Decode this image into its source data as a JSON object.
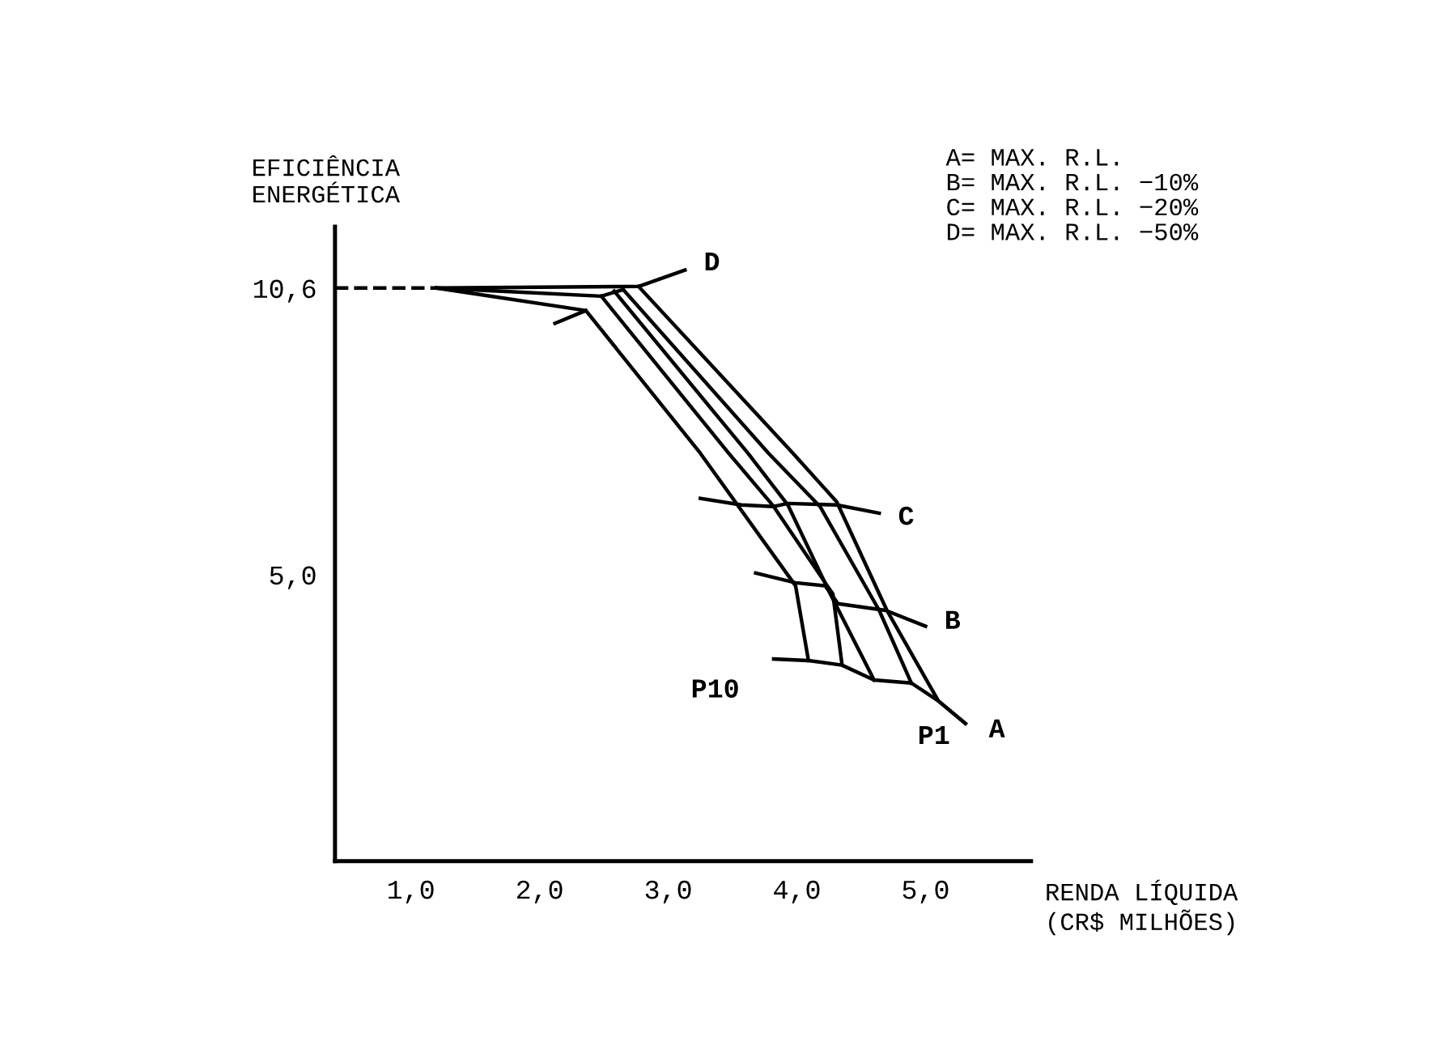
{
  "chart_data": {
    "type": "line",
    "xlabel": "RENDA LÍQUIDA\n(CR$ MILHÕES)",
    "ylabel": "EFICIÊNCIA\nENERGÉTICA",
    "xlim": [
      0.41,
      5.82
    ],
    "ylim": [
      -0.6,
      11.8
    ],
    "xticks": [
      {
        "value": 1,
        "label": "1,0"
      },
      {
        "value": 2,
        "label": "2,0"
      },
      {
        "value": 3,
        "label": "3,0"
      },
      {
        "value": 4,
        "label": "4,0"
      },
      {
        "value": 5,
        "label": "5,0"
      }
    ],
    "yticks": [
      {
        "value": 5.0,
        "label": "5,0"
      },
      {
        "value": 10.6,
        "label": "10,6"
      }
    ],
    "series": [
      {
        "color": "#000000",
        "line_style": "dashed",
        "x": [
          0.41,
          1.2
        ],
        "values": [
          10.6,
          10.6
        ]
      },
      {
        "color": "#000000",
        "x": [
          2.36,
          3.25,
          3.99,
          4.09
        ],
        "values": [
          10.16,
          7.37,
          4.78,
          3.32
        ]
      },
      {
        "color": "#000000",
        "x": [
          2.48,
          3.47,
          3.82,
          4.22,
          4.28,
          4.35
        ],
        "values": [
          10.44,
          7.37,
          6.33,
          4.84,
          4.62,
          3.26
        ]
      },
      {
        "color": "#000000",
        "x": [
          2.58,
          3.62,
          3.93,
          4.26,
          4.6
        ],
        "values": [
          10.54,
          7.37,
          6.36,
          4.62,
          2.94
        ]
      },
      {
        "color": "#000000",
        "x": [
          2.65,
          3.78,
          4.18,
          4.64,
          4.89
        ],
        "values": [
          10.57,
          7.37,
          6.33,
          4.3,
          2.88
        ]
      },
      {
        "color": "#000000",
        "x": [
          2.77,
          3.97,
          4.31,
          4.7,
          5.1,
          5.31
        ],
        "values": [
          10.63,
          7.37,
          6.42,
          4.3,
          2.53,
          2.09
        ]
      },
      {
        "color": "#000000",
        "x": [
          1.2,
          2.36,
          2.12
        ],
        "values": [
          10.6,
          10.16,
          9.91
        ]
      },
      {
        "color": "#000000",
        "x": [
          1.2,
          2.48,
          2.65
        ],
        "values": [
          10.6,
          10.44,
          10.57
        ]
      },
      {
        "color": "#000000",
        "x": [
          1.2,
          2.77,
          3.13
        ],
        "values": [
          10.6,
          10.63,
          10.95
        ]
      },
      {
        "color": "#000000",
        "x": [
          3.25,
          3.57,
          3.82,
          3.93,
          4.31,
          4.64
        ],
        "values": [
          6.49,
          6.36,
          6.33,
          6.39,
          6.36,
          6.2
        ]
      },
      {
        "color": "#000000",
        "x": [
          3.68,
          3.99,
          4.22,
          4.32,
          4.69,
          5.0
        ],
        "values": [
          5.03,
          4.84,
          4.78,
          4.43,
          4.3,
          3.99
        ]
      },
      {
        "color": "#000000",
        "x": [
          3.82,
          4.09,
          4.35,
          4.6,
          4.89,
          5.1,
          5.31
        ],
        "values": [
          3.35,
          3.32,
          3.23,
          2.94,
          2.88,
          2.53,
          2.09
        ]
      }
    ],
    "annotations": [
      {
        "text": "D",
        "x": 3.13,
        "y": 10.95
      },
      {
        "text": "C",
        "x": 4.64,
        "y": 6.2
      },
      {
        "text": "B",
        "x": 5.0,
        "y": 3.99
      },
      {
        "text": "A",
        "x": 5.31,
        "y": 2.09
      },
      {
        "text": "P1",
        "x": 5.1,
        "y": 2.53
      },
      {
        "text": "P10",
        "x": 3.82,
        "y": 3.35
      },
      "A= MAX. R.L.\nB= MAX. R.L. −10%\nC= MAX. R.L. −20%\nD= MAX. R.L. −50%"
    ]
  }
}
